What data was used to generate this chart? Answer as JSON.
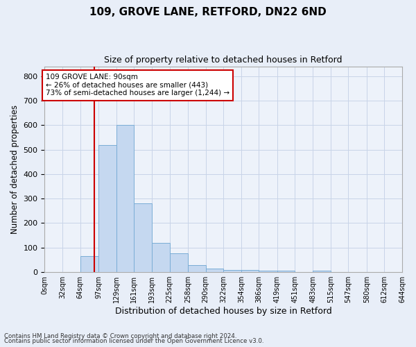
{
  "title": "109, GROVE LANE, RETFORD, DN22 6ND",
  "subtitle": "Size of property relative to detached houses in Retford",
  "xlabel": "Distribution of detached houses by size in Retford",
  "ylabel": "Number of detached properties",
  "bin_edges": [
    0,
    32,
    64,
    97,
    129,
    161,
    193,
    225,
    258,
    290,
    322,
    354,
    386,
    419,
    451,
    483,
    515,
    547,
    580,
    612,
    644
  ],
  "bar_heights": [
    0,
    0,
    65,
    520,
    600,
    280,
    120,
    78,
    28,
    15,
    10,
    10,
    5,
    5,
    0,
    5,
    0,
    0,
    0,
    0
  ],
  "bar_color": "#c5d8f0",
  "bar_edge_color": "#7aadd6",
  "grid_color": "#c8d4e8",
  "bg_color": "#e8eef8",
  "plot_bg_color": "#edf2fa",
  "vline_x": 90,
  "vline_color": "#cc0000",
  "annotation_text": "109 GROVE LANE: 90sqm\n← 26% of detached houses are smaller (443)\n73% of semi-detached houses are larger (1,244) →",
  "annotation_box_color": "#ffffff",
  "annotation_box_edge": "#cc0000",
  "footer_line1": "Contains HM Land Registry data © Crown copyright and database right 2024.",
  "footer_line2": "Contains public sector information licensed under the Open Government Licence v3.0.",
  "tick_labels": [
    "0sqm",
    "32sqm",
    "64sqm",
    "97sqm",
    "129sqm",
    "161sqm",
    "193sqm",
    "225sqm",
    "258sqm",
    "290sqm",
    "322sqm",
    "354sqm",
    "386sqm",
    "419sqm",
    "451sqm",
    "483sqm",
    "515sqm",
    "547sqm",
    "580sqm",
    "612sqm",
    "644sqm"
  ],
  "ylim": [
    0,
    840
  ],
  "yticks": [
    0,
    100,
    200,
    300,
    400,
    500,
    600,
    700,
    800
  ]
}
